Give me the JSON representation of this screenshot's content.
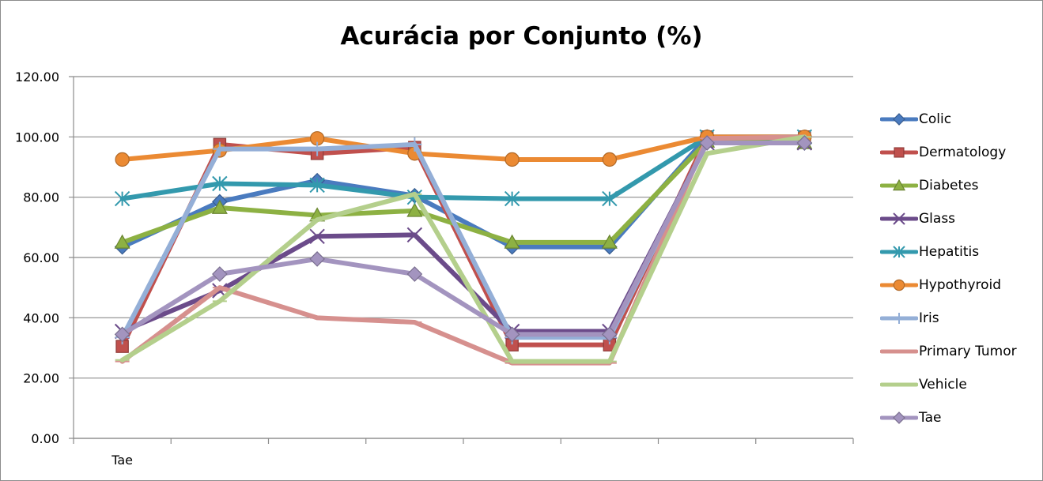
{
  "chart_data": {
    "type": "line",
    "title": "Acurácia por Conjunto (%)",
    "categories": [
      "Tae",
      "",
      "",
      "",
      "",
      "",
      "",
      ""
    ],
    "ylim": [
      0,
      120
    ],
    "yticks": [
      "0.00",
      "20.00",
      "40.00",
      "60.00",
      "80.00",
      "100.00",
      "120.00"
    ],
    "grid": true,
    "legend_position": "right",
    "series": [
      {
        "name": "Colic",
        "color": "#4a7bbf",
        "marker": "diamond",
        "values": [
          63.5,
          78.5,
          85.5,
          80.5,
          63.5,
          63.5,
          100,
          98
        ]
      },
      {
        "name": "Dermatology",
        "color": "#c0504d",
        "marker": "square",
        "values": [
          30.5,
          97.5,
          94.5,
          96.5,
          31,
          31,
          100,
          100
        ]
      },
      {
        "name": "Diabetes",
        "color": "#8db143",
        "marker": "triangle",
        "values": [
          65,
          76.5,
          74,
          75.5,
          65,
          65,
          98.5,
          98
        ]
      },
      {
        "name": "Glass",
        "color": "#6b4b8a",
        "marker": "x",
        "values": [
          35.5,
          49,
          67,
          67.5,
          35.5,
          35.5,
          98,
          98
        ]
      },
      {
        "name": "Hepatitis",
        "color": "#3399ad",
        "marker": "asterisk",
        "values": [
          79.5,
          84.5,
          84,
          80,
          79.5,
          79.5,
          100,
          100
        ]
      },
      {
        "name": "Hypothyroid",
        "color": "#eb8a33",
        "marker": "circle",
        "values": [
          92.5,
          95.5,
          99.5,
          94.5,
          92.5,
          92.5,
          100,
          100
        ]
      },
      {
        "name": "Iris",
        "color": "#94afd7",
        "marker": "plus",
        "values": [
          33.5,
          96,
          96,
          97.5,
          33.5,
          33.5,
          98,
          98
        ]
      },
      {
        "name": "Primary Tumor",
        "color": "#d6908e",
        "marker": "dash",
        "values": [
          25.5,
          50,
          40,
          38.5,
          25,
          25,
          99.5,
          100
        ]
      },
      {
        "name": "Vehicle",
        "color": "#b4cf8c",
        "marker": "dash",
        "values": [
          26,
          45.5,
          72.5,
          81,
          25.5,
          25.5,
          94.5,
          100
        ]
      },
      {
        "name": "Tae",
        "color": "#a394bf",
        "marker": "diamond",
        "values": [
          34.5,
          54.5,
          59.5,
          54.5,
          34.5,
          34.5,
          98,
          98
        ]
      }
    ]
  }
}
